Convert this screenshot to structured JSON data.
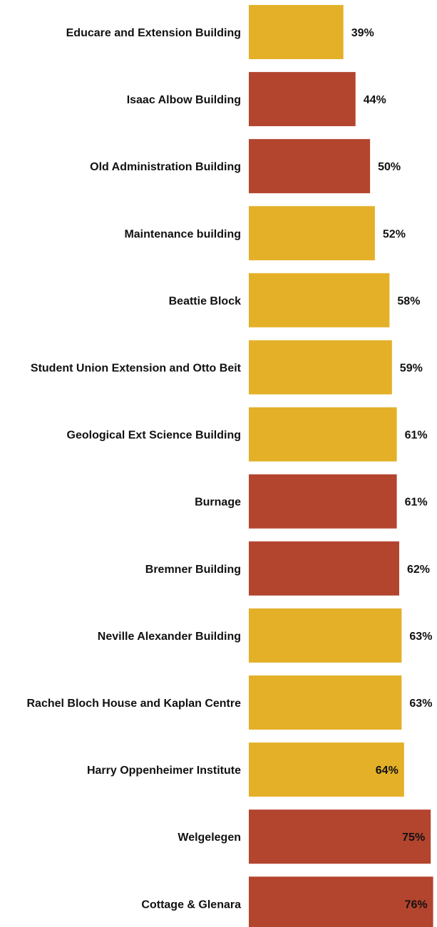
{
  "chart_data": {
    "type": "bar",
    "orientation": "horizontal",
    "categories": [
      "Educare and Extension Building",
      "Isaac Albow Building",
      "Old Administration Building",
      "Maintenance building",
      "Beattie Block",
      "Student Union Extension and Otto Beit",
      "Geological Ext Science Building",
      "Burnage",
      "Bremner Building",
      "Neville Alexander Building",
      "Rachel Bloch House and Kaplan Centre",
      "Harry Oppenheimer Institute",
      "Welgelegen",
      "Cottage & Glenara"
    ],
    "values": [
      39,
      44,
      50,
      52,
      58,
      59,
      61,
      61,
      62,
      63,
      63,
      64,
      75,
      76
    ],
    "value_labels": [
      "39%",
      "44%",
      "50%",
      "52%",
      "58%",
      "59%",
      "61%",
      "61%",
      "62%",
      "63%",
      "63%",
      "64%",
      "75%",
      "76%"
    ],
    "color_groups": [
      "gold",
      "red",
      "red",
      "gold",
      "gold",
      "gold",
      "gold",
      "red",
      "red",
      "gold",
      "gold",
      "gold",
      "red",
      "red"
    ],
    "colors": {
      "gold": "#E3B028",
      "red": "#B3442E"
    },
    "xlim": [
      0,
      77
    ],
    "grid": false,
    "legend": "none",
    "title": "",
    "xlabel": "",
    "ylabel": ""
  }
}
